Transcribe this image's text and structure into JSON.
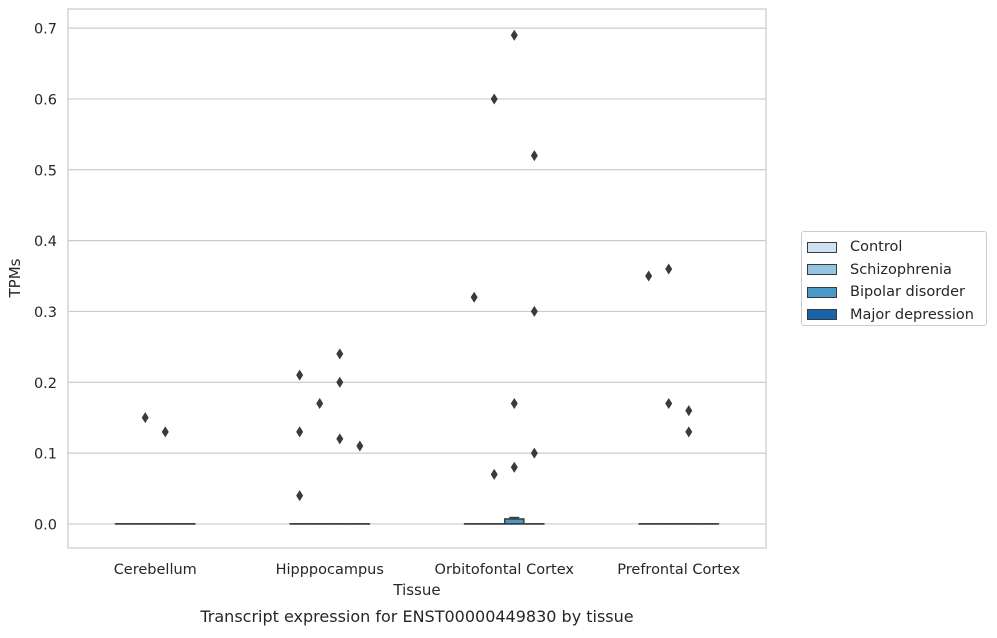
{
  "chart_data": {
    "type": "box",
    "title": "Transcript expression for ENST00000449830 by tissue",
    "xlabel": "Tissue",
    "ylabel": "TPMs",
    "ylim": [
      -0.034,
      0.727
    ],
    "yticks": [
      "0.0",
      "0.1",
      "0.2",
      "0.3",
      "0.4",
      "0.5",
      "0.6",
      "0.7"
    ],
    "ytick_values": [
      0,
      0.1,
      0.2,
      0.3,
      0.4,
      0.5,
      0.6,
      0.7
    ],
    "grid": "horizontal",
    "legend_position": "right",
    "categories": [
      "Cerebellum",
      "Hipppocampus",
      "Orbitofontal Cortex",
      "Prefrontal Cortex"
    ],
    "series": [
      {
        "name": "Control",
        "color": "#d0e1f2",
        "boxes": [
          {
            "q1": 0,
            "median": 0,
            "q3": 0,
            "whisker_low": 0,
            "whisker_high": 0,
            "outliers": []
          },
          {
            "q1": 0,
            "median": 0,
            "q3": 0,
            "whisker_low": 0,
            "whisker_high": 0,
            "outliers": [
              0.21,
              0.13,
              0.04
            ]
          },
          {
            "q1": 0,
            "median": 0,
            "q3": 0,
            "whisker_low": 0,
            "whisker_high": 0,
            "outliers": [
              0.32
            ]
          },
          {
            "q1": 0,
            "median": 0,
            "q3": 0,
            "whisker_low": 0,
            "whisker_high": 0,
            "outliers": [
              0.35
            ]
          }
        ]
      },
      {
        "name": "Schizophrenia",
        "color": "#94c4df",
        "boxes": [
          {
            "q1": 0,
            "median": 0,
            "q3": 0,
            "whisker_low": 0,
            "whisker_high": 0,
            "outliers": [
              0.15
            ]
          },
          {
            "q1": 0,
            "median": 0,
            "q3": 0,
            "whisker_low": 0,
            "whisker_high": 0,
            "outliers": [
              0.17
            ]
          },
          {
            "q1": 0,
            "median": 0,
            "q3": 0,
            "whisker_low": 0,
            "whisker_high": 0,
            "outliers": [
              0.6,
              0.07
            ]
          },
          {
            "q1": 0,
            "median": 0,
            "q3": 0,
            "whisker_low": 0,
            "whisker_high": 0,
            "outliers": [
              0.36,
              0.17
            ]
          }
        ]
      },
      {
        "name": "Bipolar disorder",
        "color": "#4a98c9",
        "boxes": [
          {
            "q1": 0,
            "median": 0,
            "q3": 0,
            "whisker_low": 0,
            "whisker_high": 0,
            "outliers": [
              0.13
            ]
          },
          {
            "q1": 0,
            "median": 0,
            "q3": 0,
            "whisker_low": 0,
            "whisker_high": 0,
            "outliers": [
              0.24,
              0.2,
              0.12
            ]
          },
          {
            "q1": 0,
            "median": 0,
            "q3": 0.007,
            "whisker_low": 0,
            "whisker_high": 0.009,
            "outliers": [
              0.69,
              0.17,
              0.08
            ]
          },
          {
            "q1": 0,
            "median": 0,
            "q3": 0,
            "whisker_low": 0,
            "whisker_high": 0,
            "outliers": [
              0.16,
              0.13
            ]
          }
        ]
      },
      {
        "name": "Major depression",
        "color": "#1764ab",
        "boxes": [
          {
            "q1": 0,
            "median": 0,
            "q3": 0,
            "whisker_low": 0,
            "whisker_high": 0,
            "outliers": []
          },
          {
            "q1": 0,
            "median": 0,
            "q3": 0,
            "whisker_low": 0,
            "whisker_high": 0,
            "outliers": [
              0.11
            ]
          },
          {
            "q1": 0,
            "median": 0,
            "q3": 0,
            "whisker_low": 0,
            "whisker_high": 0,
            "outliers": [
              0.52,
              0.3,
              0.1
            ]
          },
          {
            "q1": 0,
            "median": 0,
            "q3": 0,
            "whisker_low": 0,
            "whisker_high": 0,
            "outliers": []
          }
        ]
      }
    ]
  }
}
